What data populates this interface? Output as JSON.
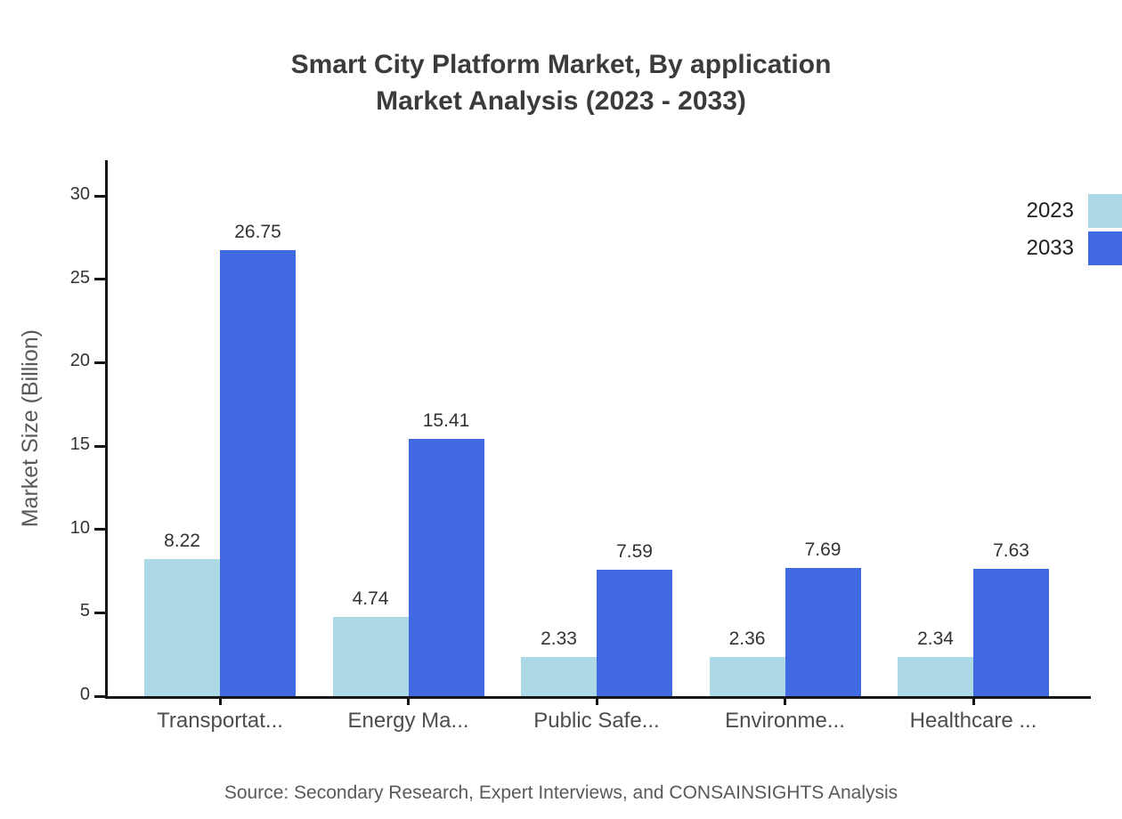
{
  "title_lines": [
    "Smart City Platform Market, By application",
    "Market Analysis (2023 - 2033)"
  ],
  "source": "Source: Secondary Research, Expert Interviews, and CONSAINSIGHTS Analysis",
  "chart_data": {
    "type": "bar",
    "title": "Smart City Platform Market, By application Market Analysis (2023 - 2033)",
    "categories": [
      "Transportat...",
      "Energy Ma...",
      "Public Safe...",
      "Environme...",
      "Healthcare ..."
    ],
    "series": [
      {
        "name": "2023",
        "color": "#ADD8E6",
        "values": [
          8.22,
          4.74,
          2.33,
          2.36,
          2.34
        ]
      },
      {
        "name": "2033",
        "color": "#4169E1",
        "values": [
          26.75,
          15.41,
          7.59,
          7.69,
          7.63
        ]
      }
    ],
    "xlabel": "",
    "ylabel": "Market Size (Billion)",
    "ylim": [
      0,
      30
    ],
    "yticks": [
      0,
      5,
      10,
      15,
      20,
      25,
      30
    ],
    "value_labels": true,
    "grid": false,
    "legend_position": "top-right",
    "colors": {
      "axis": "#151515",
      "title_text": "#3b3b3b",
      "tick_text": "#333333",
      "category_text": "#4d4d4d",
      "muted_text": "#595959"
    }
  }
}
